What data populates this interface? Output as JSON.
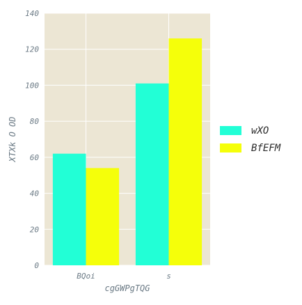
{
  "chart_data": {
    "type": "bar",
    "title": "",
    "xlabel": "cgGWPgTQG",
    "ylabel": "XTXk O OD",
    "categories": [
      "BQoi",
      "s"
    ],
    "series": [
      {
        "name": "wXO",
        "values": [
          62,
          101
        ],
        "color": "#22ffd6"
      },
      {
        "name": "BfEFM",
        "values": [
          54,
          126
        ],
        "color": "#f5ff0a"
      }
    ],
    "ylim": [
      0,
      140
    ],
    "yticks": [
      0,
      20,
      40,
      60,
      80,
      100,
      120,
      140
    ],
    "grid": true,
    "legend_position": "right",
    "background_color": "#ece6d4",
    "grid_color": "#ffffff",
    "text_color": "#6b7a85"
  }
}
